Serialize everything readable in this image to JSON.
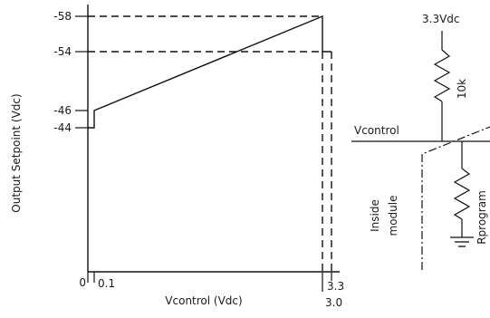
{
  "diagram": {
    "y_axis_label": "Output Setpoint (Vdc)",
    "x_axis_label": "Vcontrol (Vdc)",
    "y_ticks": [
      "-58",
      "-54",
      "-46",
      "-44"
    ],
    "x_ticks": [
      "0",
      "0.1",
      "3.0",
      "3.3"
    ],
    "curve": {
      "x_start": 0.1,
      "y_start": -46,
      "x_end": 3.0,
      "y_end": -58,
      "low_level": -44,
      "high_level": -54
    },
    "circuit": {
      "supply_label": "3.3Vdc",
      "resistor_label": "10k",
      "node_label": "Vcontrol",
      "module_label_line1": "Inside",
      "module_label_line2": "module",
      "program_resistor_label": "Rprogram"
    }
  }
}
